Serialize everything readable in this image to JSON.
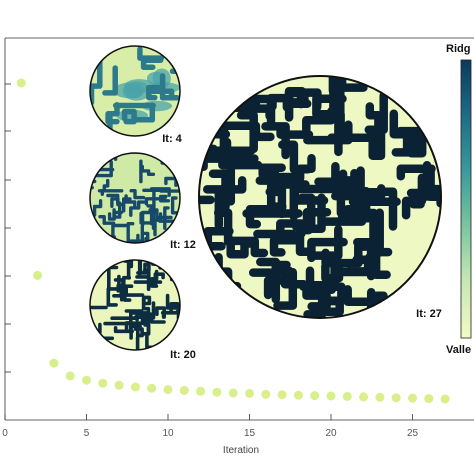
{
  "chart_data": {
    "type": "scatter",
    "xlabel": "Iteration",
    "xlim": [
      0,
      28
    ],
    "xticks": [
      0,
      5,
      10,
      15,
      20,
      25
    ],
    "x_tick_labels": [
      "0",
      "5",
      "10",
      "15",
      "20",
      "25"
    ],
    "grid": false,
    "marker_color": "#d9ef8b",
    "series": [
      {
        "x": [
          1,
          2,
          3,
          4,
          5,
          6,
          7,
          8,
          9,
          10,
          11,
          12,
          13,
          14,
          15,
          16,
          17,
          18,
          19,
          20,
          21,
          22,
          23,
          24,
          25,
          26,
          27
        ],
        "y_relative": [
          1.0,
          0.55,
          0.345,
          0.315,
          0.305,
          0.298,
          0.293,
          0.289,
          0.286,
          0.283,
          0.281,
          0.279,
          0.277,
          0.275,
          0.274,
          0.272,
          0.271,
          0.27,
          0.269,
          0.268,
          0.267,
          0.266,
          0.265,
          0.264,
          0.263,
          0.262,
          0.261
        ]
      }
    ],
    "insets": [
      {
        "label": "It: 4",
        "density": "low"
      },
      {
        "label": "It: 12",
        "density": "medium"
      },
      {
        "label": "It: 20",
        "density": "high"
      },
      {
        "label": "It: 27",
        "density": "final"
      }
    ],
    "colorbar": {
      "top_label": "Ridg",
      "bottom_label": "Valle",
      "colors": [
        "#0b3a5c",
        "#1f6b8a",
        "#3a9a9c",
        "#7cc5a0",
        "#c7e9b4",
        "#f3fbc4"
      ]
    }
  }
}
